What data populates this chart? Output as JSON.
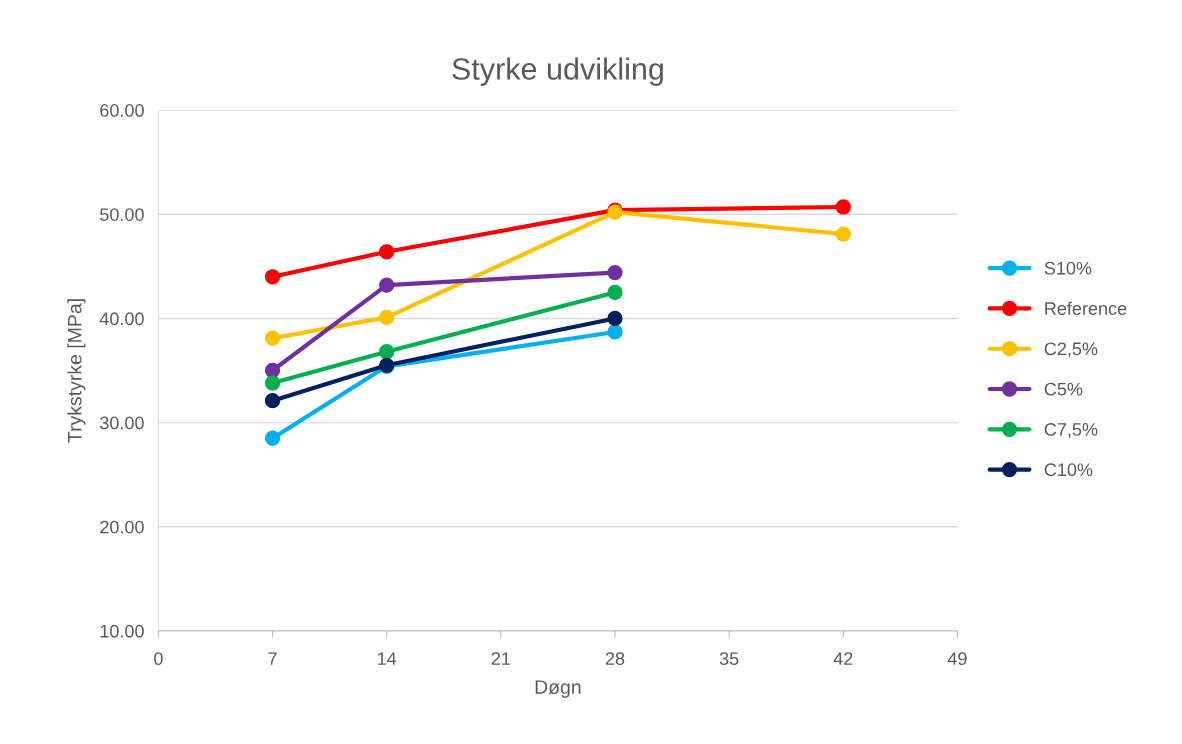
{
  "chart_data": {
    "type": "line",
    "title": "Styrke udvikling",
    "xlabel": "Døgn",
    "ylabel": "Trykstyrke [MPa]",
    "x": [
      7,
      14,
      28,
      42
    ],
    "series": [
      {
        "name": "S10%",
        "color": "#00b0f0",
        "values": [
          28.5,
          35.4,
          38.7,
          null
        ]
      },
      {
        "name": "Reference",
        "color": "#ff0000",
        "values": [
          44.0,
          46.4,
          50.4,
          50.7
        ]
      },
      {
        "name": "C2,5%",
        "color": "#ffc000",
        "values": [
          38.1,
          40.1,
          50.2,
          48.1
        ]
      },
      {
        "name": "C5%",
        "color": "#7030a0",
        "values": [
          35.0,
          43.2,
          44.4,
          null
        ]
      },
      {
        "name": "C7,5%",
        "color": "#00b050",
        "values": [
          33.8,
          36.8,
          42.5,
          null
        ]
      },
      {
        "name": "C10%",
        "color": "#002060",
        "values": [
          32.1,
          35.5,
          40.0,
          null
        ]
      }
    ],
    "xlim": [
      0,
      49
    ],
    "xticks": [
      0,
      7,
      14,
      21,
      28,
      35,
      42,
      49
    ],
    "ylim": [
      10,
      60
    ],
    "yticks": [
      {
        "value": 10,
        "label": "10.00"
      },
      {
        "value": 20,
        "label": "20.00"
      },
      {
        "value": 30,
        "label": "30.00"
      },
      {
        "value": 40,
        "label": "40.00"
      },
      {
        "value": 50,
        "label": "50.00"
      },
      {
        "value": 60,
        "label": "60.00"
      }
    ],
    "grid": "y",
    "legend": "right",
    "marker": "circle",
    "line_style": "solid"
  }
}
